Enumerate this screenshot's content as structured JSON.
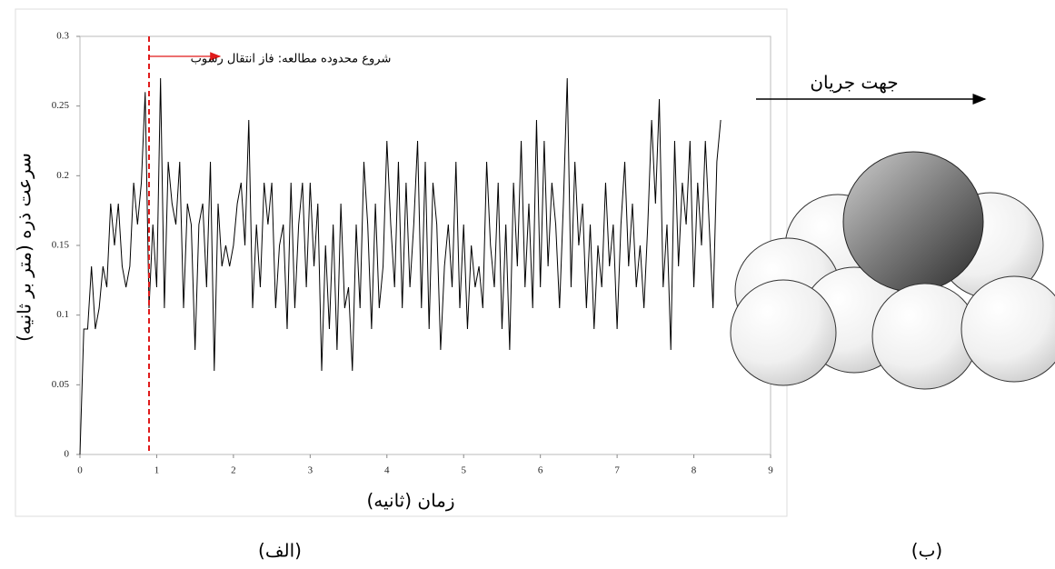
{
  "chart_data": {
    "type": "line",
    "xlabel": "زمان (ثانیه)",
    "ylabel": "سرعت ذره (متر بر ثانیه)",
    "annotation": "شروع محدوده مطالعه: فاز انتقال رسوب",
    "vline_x": 0.9,
    "vline_color": "#e01b1b",
    "xlim": [
      0,
      9
    ],
    "ylim": [
      0,
      0.3
    ],
    "xticks": [
      0,
      1,
      2,
      3,
      4,
      5,
      6,
      7,
      8,
      9
    ],
    "yticks": [
      0,
      0.05,
      0.1,
      0.15,
      0.2,
      0.25,
      0.3
    ],
    "grid": false,
    "x": [
      0,
      0.05,
      0.1,
      0.15,
      0.2,
      0.25,
      0.3,
      0.35,
      0.4,
      0.45,
      0.5,
      0.55,
      0.6,
      0.65,
      0.7,
      0.75,
      0.8,
      0.85,
      0.9,
      0.95,
      1,
      1.05,
      1.1,
      1.15,
      1.2,
      1.25,
      1.3,
      1.35,
      1.4,
      1.45,
      1.5,
      1.55,
      1.6,
      1.65,
      1.7,
      1.75,
      1.8,
      1.85,
      1.9,
      1.95,
      2,
      2.05,
      2.1,
      2.15,
      2.2,
      2.25,
      2.3,
      2.35,
      2.4,
      2.45,
      2.5,
      2.55,
      2.6,
      2.65,
      2.7,
      2.75,
      2.8,
      2.85,
      2.9,
      2.95,
      3,
      3.05,
      3.1,
      3.15,
      3.2,
      3.25,
      3.3,
      3.35,
      3.4,
      3.45,
      3.5,
      3.55,
      3.6,
      3.65,
      3.7,
      3.75,
      3.8,
      3.85,
      3.9,
      3.95,
      4,
      4.05,
      4.1,
      4.15,
      4.2,
      4.25,
      4.3,
      4.35,
      4.4,
      4.45,
      4.5,
      4.55,
      4.6,
      4.65,
      4.7,
      4.75,
      4.8,
      4.85,
      4.9,
      4.95,
      5,
      5.05,
      5.1,
      5.15,
      5.2,
      5.25,
      5.3,
      5.35,
      5.4,
      5.45,
      5.5,
      5.55,
      5.6,
      5.65,
      5.7,
      5.75,
      5.8,
      5.85,
      5.9,
      5.95,
      6,
      6.05,
      6.1,
      6.15,
      6.2,
      6.25,
      6.3,
      6.35,
      6.4,
      6.45,
      6.5,
      6.55,
      6.6,
      6.65,
      6.7,
      6.75,
      6.8,
      6.85,
      6.9,
      6.95,
      7,
      7.05,
      7.1,
      7.15,
      7.2,
      7.25,
      7.3,
      7.35,
      7.4,
      7.45,
      7.5,
      7.55,
      7.6,
      7.65,
      7.7,
      7.75,
      7.8,
      7.85,
      7.9,
      7.95,
      8,
      8.05,
      8.1,
      8.15,
      8.2,
      8.25,
      8.3,
      8.35
    ],
    "series": [
      {
        "color": "#000000",
        "values": [
          0,
          0.09,
          0.09,
          0.135,
          0.09,
          0.105,
          0.135,
          0.12,
          0.18,
          0.15,
          0.18,
          0.135,
          0.12,
          0.135,
          0.195,
          0.165,
          0.195,
          0.26,
          0.105,
          0.165,
          0.12,
          0.27,
          0.105,
          0.21,
          0.18,
          0.165,
          0.21,
          0.105,
          0.18,
          0.165,
          0.075,
          0.165,
          0.18,
          0.12,
          0.21,
          0.06,
          0.18,
          0.135,
          0.15,
          0.135,
          0.15,
          0.18,
          0.195,
          0.15,
          0.24,
          0.105,
          0.165,
          0.12,
          0.195,
          0.165,
          0.195,
          0.105,
          0.15,
          0.165,
          0.09,
          0.195,
          0.105,
          0.165,
          0.195,
          0.12,
          0.195,
          0.135,
          0.18,
          0.06,
          0.15,
          0.09,
          0.165,
          0.075,
          0.18,
          0.105,
          0.12,
          0.06,
          0.165,
          0.105,
          0.21,
          0.165,
          0.09,
          0.18,
          0.105,
          0.135,
          0.225,
          0.165,
          0.12,
          0.21,
          0.105,
          0.195,
          0.12,
          0.165,
          0.225,
          0.105,
          0.21,
          0.09,
          0.195,
          0.165,
          0.075,
          0.135,
          0.165,
          0.12,
          0.21,
          0.105,
          0.165,
          0.09,
          0.15,
          0.12,
          0.135,
          0.105,
          0.21,
          0.15,
          0.12,
          0.195,
          0.09,
          0.165,
          0.075,
          0.195,
          0.135,
          0.225,
          0.12,
          0.18,
          0.105,
          0.24,
          0.12,
          0.225,
          0.135,
          0.195,
          0.165,
          0.105,
          0.18,
          0.27,
          0.12,
          0.21,
          0.15,
          0.18,
          0.105,
          0.165,
          0.09,
          0.15,
          0.12,
          0.195,
          0.135,
          0.165,
          0.09,
          0.165,
          0.21,
          0.135,
          0.18,
          0.12,
          0.15,
          0.105,
          0.165,
          0.24,
          0.18,
          0.255,
          0.12,
          0.165,
          0.075,
          0.225,
          0.135,
          0.195,
          0.165,
          0.225,
          0.12,
          0.195,
          0.15,
          0.225,
          0.165,
          0.105,
          0.21,
          0.24
        ]
      }
    ]
  },
  "diagram": {
    "flow_label": "جهت جریان"
  },
  "captions": {
    "a": "(الف)",
    "b": "(ب)"
  }
}
